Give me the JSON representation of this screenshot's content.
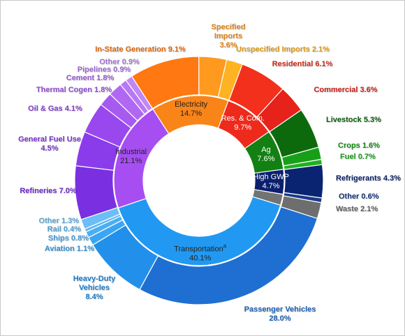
{
  "chart_data": {
    "type": "sunburst",
    "annotation": "a",
    "inner": {
      "categories": [
        "Electricity",
        "Res. & Com.",
        "Ag",
        "High GWP",
        null,
        "Transportation",
        "Industrial"
      ],
      "values": [
        14.7,
        9.7,
        7.6,
        4.7,
        2.1,
        40.1,
        21.1
      ],
      "value_labels": [
        "14.7%",
        "9.7%",
        "7.6%",
        "4.7%",
        null,
        "40.1%",
        "21.1%"
      ],
      "colors": [
        "#f98418",
        "#ee2a1c",
        "#128012",
        "#0b1f6e",
        "#737373",
        "#2199f2",
        "#a64ef2"
      ]
    },
    "outer": {
      "categories": [
        "In-State Generation",
        "Specified Imports",
        "Unspecified Imports",
        "Residential",
        "Commercial",
        "Livestock",
        "Crops",
        "Fuel",
        "Refrigerants",
        "Other",
        "Waste",
        "Passenger Vehicles",
        "Heavy-Duty Vehicles",
        "Aviation",
        "Ships",
        "Rail",
        "Other",
        "Refineries",
        "General Fuel Use",
        "Oil & Gas",
        "Thermal Cogen",
        "Cement",
        "Pipelines",
        "Other"
      ],
      "values": [
        9.1,
        3.6,
        2.1,
        6.1,
        3.6,
        5.3,
        1.6,
        0.7,
        4.3,
        0.6,
        2.1,
        28.0,
        8.4,
        1.1,
        0.8,
        0.4,
        1.3,
        7.0,
        4.5,
        4.1,
        1.8,
        1.8,
        0.9,
        0.9
      ],
      "value_labels": [
        "9.1%",
        "3.6%",
        "2.1%",
        "6.1%",
        "3.6%",
        "5.3%",
        "1.6%",
        "0.7%",
        "4.3%",
        "0.6%",
        "2.1%",
        "28.0%",
        "8.4%",
        "1.1%",
        "0.8%",
        "0.4%",
        "1.3%",
        "7.0%",
        "4.5%",
        "4.1%",
        "1.8%",
        "1.8%",
        "0.9%",
        "0.9%"
      ],
      "colors": [
        "#ff7812",
        "#ff9a1e",
        "#ffb222",
        "#f2301c",
        "#e6221a",
        "#0c6a0c",
        "#17a017",
        "#20b020",
        "#0a2472",
        "#1a3a88",
        "#6e6e6e",
        "#1f6fd2",
        "#2290ea",
        "#3aa6f2",
        "#4caef4",
        "#5cb6f4",
        "#6cbef6",
        "#7a30e0",
        "#8a3cea",
        "#9848ee",
        "#a65af0",
        "#b068f2",
        "#b878f4",
        "#c088f6"
      ]
    }
  }
}
